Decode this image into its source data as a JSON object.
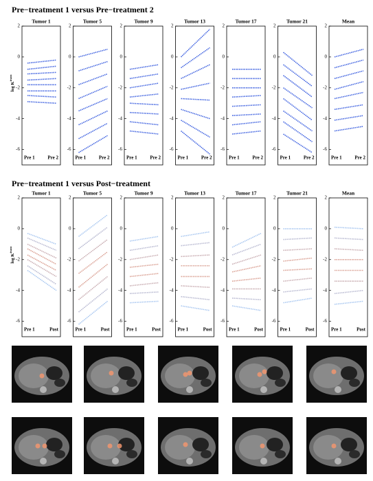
{
  "chart_data": [
    {
      "type": "slope",
      "title": "Pre−treatment 1 versus Pre−treatment 2",
      "ylabel": "log K",
      "ylabel_sup": "trans",
      "categories": [
        "Pre 1",
        "Pre 2"
      ],
      "ylim": [
        -7,
        2
      ],
      "yticks": [
        -6,
        -4,
        -2,
        0,
        2
      ],
      "color": "#3f62e0",
      "panels": [
        {
          "title": "Tumor 1",
          "start": [
            -0.4,
            -0.8,
            -1.1,
            -1.5,
            -1.8,
            -2.2,
            -2.5,
            -2.9
          ],
          "end": [
            -0.2,
            -0.6,
            -1.0,
            -1.4,
            -1.8,
            -2.2,
            -2.6,
            -3.0
          ]
        },
        {
          "title": "Tumor 5",
          "start": [
            0,
            -0.9,
            -1.8,
            -2.7,
            -3.5,
            -4.4,
            -5.3,
            -6.2
          ],
          "end": [
            0.5,
            -0.3,
            -1.1,
            -1.9,
            -2.7,
            -3.5,
            -4.3,
            -5.1
          ]
        },
        {
          "title": "Tumor 9",
          "start": [
            -0.8,
            -1.4,
            -2.0,
            -2.6,
            -3.0,
            -3.6,
            -4.2,
            -4.8
          ],
          "end": [
            -0.5,
            -1.1,
            -1.7,
            -2.4,
            -3.1,
            -3.7,
            -4.4,
            -5.0
          ]
        },
        {
          "title": "Tumor 13",
          "start": [
            0,
            -0.7,
            -1.4,
            -2.1,
            -2.7,
            -3.4,
            -4.1,
            -4.8
          ],
          "end": [
            1.8,
            0.6,
            -0.5,
            -1.7,
            -2.8,
            -4.0,
            -5.2,
            -6.3
          ]
        },
        {
          "title": "Tumor 17",
          "start": [
            -0.8,
            -1.4,
            -2.0,
            -2.6,
            -3.2,
            -3.8,
            -4.4,
            -5.0
          ],
          "end": [
            -0.8,
            -1.4,
            -2.0,
            -2.5,
            -3.1,
            -3.7,
            -4.2,
            -4.8
          ]
        },
        {
          "title": "Tumor 21",
          "start": [
            0.3,
            -0.5,
            -1.2,
            -2.0,
            -2.7,
            -3.5,
            -4.2,
            -5.0
          ],
          "end": [
            -1.2,
            -1.9,
            -2.6,
            -3.3,
            -4.1,
            -4.8,
            -5.5,
            -6.2
          ]
        },
        {
          "title": "Mean",
          "start": [
            0,
            -0.7,
            -1.4,
            -2.1,
            -2.7,
            -3.4,
            -4.1,
            -4.8
          ],
          "end": [
            0.5,
            -0.2,
            -0.9,
            -1.6,
            -2.3,
            -3.1,
            -3.8,
            -4.5
          ]
        }
      ]
    },
    {
      "type": "slope",
      "title": "Pre−treatment 1 versus Post−treatment",
      "ylabel": "log K",
      "ylabel_sup": "trans",
      "categories": [
        "Pre 1",
        "Post"
      ],
      "ylim": [
        -7,
        2
      ],
      "yticks": [
        -6,
        -4,
        -2,
        0,
        2
      ],
      "colormap": [
        "#e39a83",
        "#a7c6f0"
      ],
      "panels": [
        {
          "title": "Tumor 1",
          "start": [
            -0.3,
            -0.6,
            -1.0,
            -1.3,
            -1.7,
            -2.0,
            -2.4,
            -2.7
          ],
          "end": [
            -1.0,
            -1.4,
            -1.9,
            -2.3,
            -2.7,
            -3.1,
            -3.6,
            -4.0
          ]
        },
        {
          "title": "Tumor 5",
          "start": [
            -0.5,
            -1.3,
            -2.1,
            -2.9,
            -3.8,
            -4.6,
            -5.4,
            -6.2
          ],
          "end": [
            0.9,
            0.1,
            -0.7,
            -1.5,
            -2.3,
            -3.1,
            -3.9,
            -4.7
          ]
        },
        {
          "title": "Tumor 9",
          "start": [
            -0.8,
            -1.4,
            -2.0,
            -2.5,
            -3.1,
            -3.7,
            -4.2,
            -4.8
          ],
          "end": [
            -0.5,
            -1.1,
            -1.7,
            -2.3,
            -2.9,
            -3.5,
            -4.1,
            -4.7
          ]
        },
        {
          "title": "Tumor 13",
          "start": [
            -0.5,
            -1.1,
            -1.8,
            -2.4,
            -3.1,
            -3.7,
            -4.4,
            -5.0
          ],
          "end": [
            -0.2,
            -0.9,
            -1.7,
            -2.4,
            -3.1,
            -3.8,
            -4.6,
            -5.3
          ]
        },
        {
          "title": "Tumor 17",
          "start": [
            -1.2,
            -1.7,
            -2.3,
            -2.8,
            -3.4,
            -3.9,
            -4.5,
            -5.0
          ],
          "end": [
            -0.3,
            -1.0,
            -1.7,
            -2.4,
            -3.2,
            -3.9,
            -4.6,
            -5.3
          ]
        },
        {
          "title": "Tumor 21",
          "start": [
            0,
            -0.7,
            -1.4,
            -2.1,
            -2.7,
            -3.4,
            -4.1,
            -4.8
          ],
          "end": [
            0,
            -0.6,
            -1.3,
            -1.9,
            -2.6,
            -3.2,
            -3.9,
            -4.5
          ]
        },
        {
          "title": "Mean",
          "start": [
            0.1,
            -0.6,
            -1.3,
            -2.0,
            -2.7,
            -3.4,
            -4.2,
            -4.9
          ],
          "end": [
            0,
            -0.7,
            -1.4,
            -2.0,
            -2.7,
            -3.4,
            -4.0,
            -4.7
          ]
        }
      ]
    }
  ]
}
